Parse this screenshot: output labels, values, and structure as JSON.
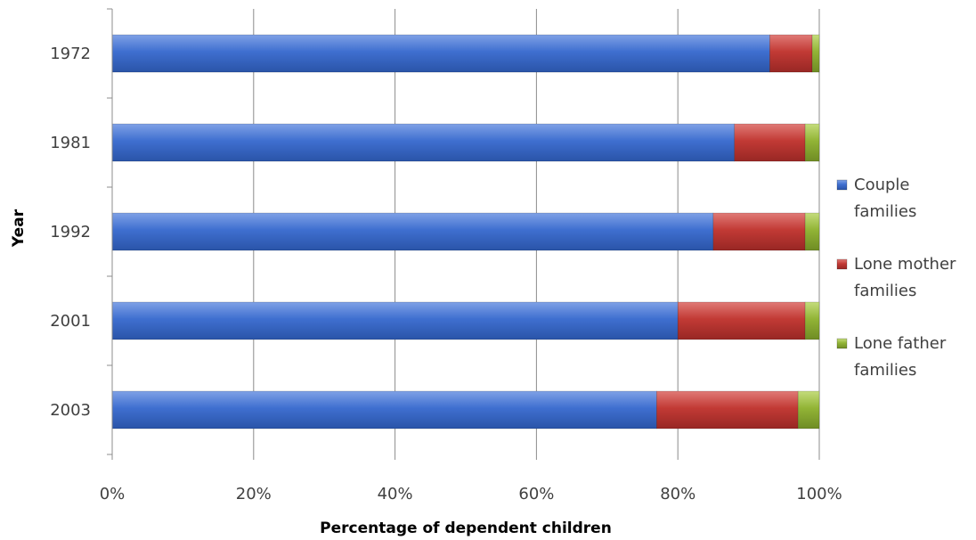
{
  "chart_data": {
    "type": "bar",
    "orientation": "horizontal",
    "stacked": "percent",
    "xlabel": "Percentage of dependent children",
    "ylabel": "Year",
    "categories": [
      "1972",
      "1981",
      "1992",
      "2001",
      "2003"
    ],
    "xlim": [
      0,
      100
    ],
    "xticks": [
      "0%",
      "20%",
      "40%",
      "60%",
      "80%",
      "100%"
    ],
    "grid": "vertical",
    "legend_position": "right",
    "series": [
      {
        "name": "Couple families",
        "name_lines": [
          "Couple",
          "families"
        ],
        "color": "#4472C4",
        "values": [
          93,
          88,
          85,
          80,
          77
        ]
      },
      {
        "name": "Lone mother families",
        "name_lines": [
          "Lone mother",
          "families"
        ],
        "color": "#C0504D",
        "values": [
          6,
          10,
          13,
          18,
          20
        ]
      },
      {
        "name": "Lone father families",
        "name_lines": [
          "Lone father",
          "families"
        ],
        "color": "#9BBB59",
        "values": [
          1,
          2,
          2,
          2,
          3
        ]
      }
    ]
  }
}
